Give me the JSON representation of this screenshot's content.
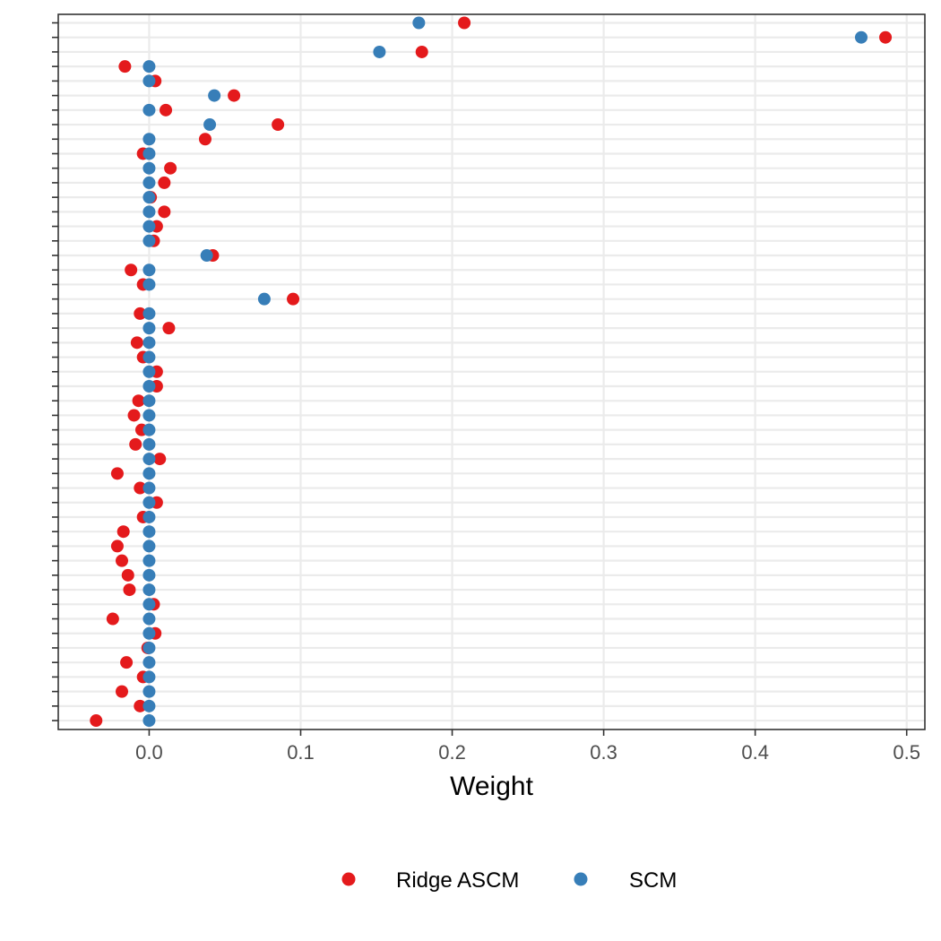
{
  "chart_data": {
    "type": "scatter",
    "title": "",
    "xlabel": "Weight",
    "ylabel": "",
    "xlim": [
      -0.06,
      0.512
    ],
    "x_ticks": [
      0.0,
      0.1,
      0.2,
      0.3,
      0.4,
      0.5
    ],
    "x_tick_labels": [
      "0.0",
      "0.1",
      "0.2",
      "0.3",
      "0.4",
      "0.5"
    ],
    "y_categories_count": 49,
    "y_tick_labels_shown": false,
    "grid": true,
    "legend_position": "bottom",
    "series": [
      {
        "name": "Ridge ASCM",
        "color": "#E41A1C",
        "values": [
          0.208,
          0.486,
          0.18,
          -0.016,
          0.004,
          0.056,
          0.011,
          0.085,
          0.037,
          -0.004,
          0.014,
          0.01,
          0.001,
          0.01,
          0.005,
          0.003,
          0.042,
          -0.012,
          -0.004,
          0.095,
          -0.006,
          0.013,
          -0.008,
          -0.004,
          0.005,
          0.005,
          -0.007,
          -0.01,
          -0.005,
          -0.009,
          0.007,
          -0.021,
          -0.006,
          0.005,
          -0.004,
          -0.017,
          -0.021,
          -0.018,
          -0.014,
          -0.013,
          0.003,
          -0.024,
          0.004,
          -0.001,
          -0.015,
          -0.004,
          -0.018,
          -0.006,
          -0.035
        ]
      },
      {
        "name": "SCM",
        "color": "#377EB8",
        "values": [
          0.178,
          0.47,
          0.152,
          0.0,
          0.0,
          0.043,
          0.0,
          0.04,
          0.0,
          0.0,
          0.0,
          0.0,
          0.0,
          0.0,
          0.0,
          0.0,
          0.038,
          0.0,
          0.0,
          0.076,
          0.0,
          0.0,
          0.0,
          0.0,
          0.0,
          0.0,
          0.0,
          0.0,
          0.0,
          0.0,
          0.0,
          0.0,
          0.0,
          0.0,
          0.0,
          0.0,
          0.0,
          0.0,
          0.0,
          0.0,
          0.0,
          0.0,
          0.0,
          0.0,
          0.0,
          0.0,
          0.0,
          0.0,
          0.0
        ]
      }
    ]
  }
}
